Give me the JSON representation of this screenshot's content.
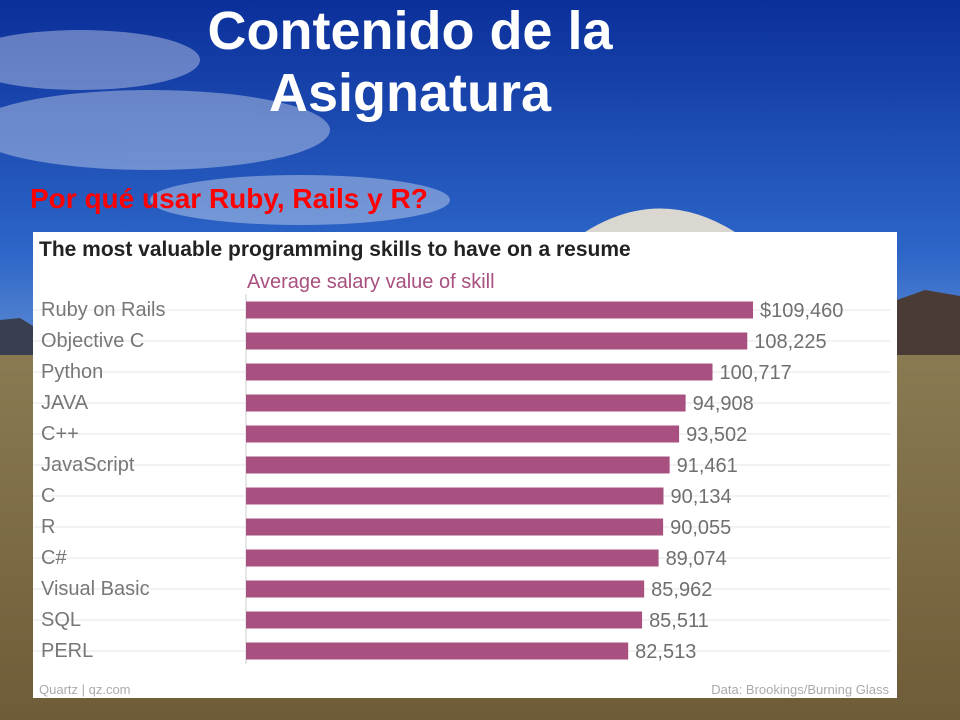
{
  "slide": {
    "title_line1": "Contenido de la",
    "title_line2": "Asignatura",
    "subtitle": "Por qué usar Ruby, Rails y R?"
  },
  "colors": {
    "bar": "#a8507f",
    "subtitle": "#ff0000",
    "chart_heading": "#222222",
    "chart_subheading": "#a8507f",
    "labels": "#777777"
  },
  "chart_data": {
    "type": "bar",
    "orientation": "horizontal",
    "title": "The most valuable programming skills to have on a resume",
    "subtitle": "Average salary value of skill",
    "categories": [
      "Ruby on Rails",
      "Objective C",
      "Python",
      "JAVA",
      "C++",
      "JavaScript",
      "C",
      "R",
      "C#",
      "Visual Basic",
      "SQL",
      "PERL"
    ],
    "values": [
      109460,
      108225,
      100717,
      94908,
      93502,
      91461,
      90134,
      90055,
      89074,
      85962,
      85511,
      82513
    ],
    "value_labels": [
      "$109,460",
      "108,225",
      "100,717",
      "94,908",
      "93,502",
      "91,461",
      "90,134",
      "90,055",
      "89,074",
      "85,962",
      "85,511",
      "82,513"
    ],
    "source_left": "Quartz | qz.com",
    "source_right": "Data: Brookings/Burning Glass",
    "grid": true
  }
}
